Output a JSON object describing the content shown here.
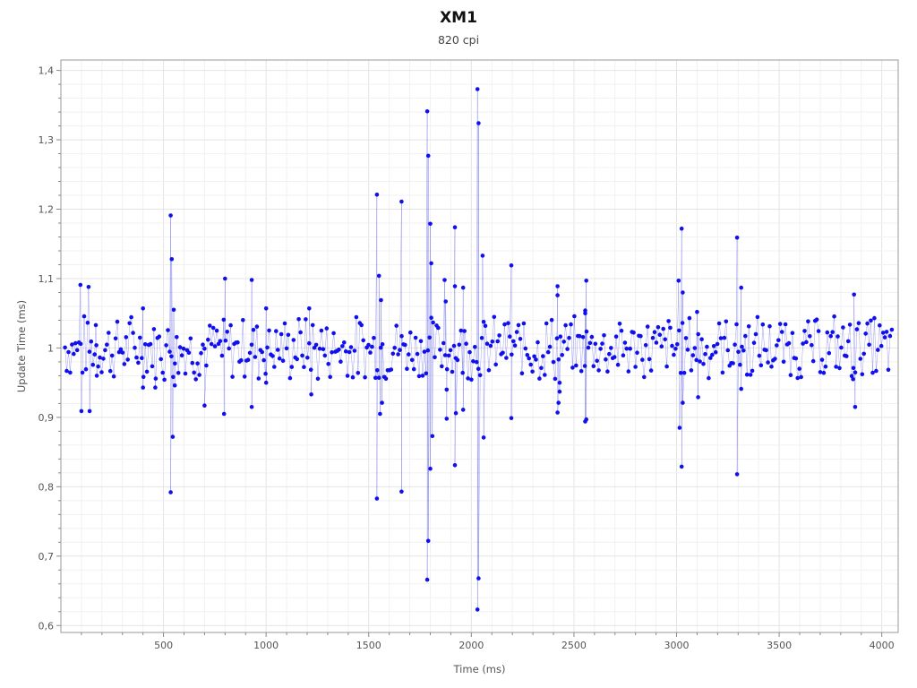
{
  "chart_data": {
    "type": "scatter",
    "title": "XM1",
    "subtitle": "820 cpi",
    "xlabel": "Time (ms)",
    "ylabel": "Update Time (ms)",
    "xlim": [
      0,
      4080
    ],
    "ylim": [
      0.59,
      1.415
    ],
    "x_ticks": [
      500,
      1000,
      1500,
      2000,
      2500,
      3000,
      3500,
      4000
    ],
    "x_tick_labels": [
      "500",
      "1000",
      "1500",
      "2000",
      "2500",
      "3000",
      "3500",
      "4000"
    ],
    "y_ticks": [
      0.6,
      0.7,
      0.8,
      0.9,
      1.0,
      1.1,
      1.2,
      1.3,
      1.4
    ],
    "y_tick_labels": [
      "0,6",
      "0,7",
      "0,8",
      "0,9",
      "1",
      "1,1",
      "1,2",
      "1,3",
      "1,4"
    ],
    "grid": true,
    "legend": "none",
    "point_color": "#1010ee",
    "line_color": "#2a2ae0",
    "outliers": [
      {
        "x": 95,
        "y": 1.091
      },
      {
        "x": 135,
        "y": 1.088
      },
      {
        "x": 100,
        "y": 0.909
      },
      {
        "x": 140,
        "y": 0.909
      },
      {
        "x": 170,
        "y": 1.033
      },
      {
        "x": 175,
        "y": 0.96
      },
      {
        "x": 535,
        "y": 1.191
      },
      {
        "x": 540,
        "y": 1.128
      },
      {
        "x": 550,
        "y": 1.055
      },
      {
        "x": 545,
        "y": 0.872
      },
      {
        "x": 535,
        "y": 0.792
      },
      {
        "x": 555,
        "y": 0.946
      },
      {
        "x": 400,
        "y": 1.057
      },
      {
        "x": 400,
        "y": 0.943
      },
      {
        "x": 460,
        "y": 0.943
      },
      {
        "x": 700,
        "y": 0.917
      },
      {
        "x": 800,
        "y": 1.1
      },
      {
        "x": 795,
        "y": 0.905
      },
      {
        "x": 930,
        "y": 1.098
      },
      {
        "x": 930,
        "y": 0.915
      },
      {
        "x": 1000,
        "y": 1.057
      },
      {
        "x": 1000,
        "y": 0.95
      },
      {
        "x": 1210,
        "y": 1.057
      },
      {
        "x": 1220,
        "y": 0.933
      },
      {
        "x": 1540,
        "y": 1.221
      },
      {
        "x": 1550,
        "y": 1.104
      },
      {
        "x": 1560,
        "y": 1.069
      },
      {
        "x": 1565,
        "y": 0.921
      },
      {
        "x": 1555,
        "y": 0.905
      },
      {
        "x": 1540,
        "y": 0.783
      },
      {
        "x": 1660,
        "y": 1.211
      },
      {
        "x": 1660,
        "y": 0.793
      },
      {
        "x": 1785,
        "y": 1.341
      },
      {
        "x": 1790,
        "y": 1.277
      },
      {
        "x": 1800,
        "y": 1.179
      },
      {
        "x": 1805,
        "y": 1.122
      },
      {
        "x": 1810,
        "y": 0.873
      },
      {
        "x": 1800,
        "y": 0.826
      },
      {
        "x": 1790,
        "y": 0.722
      },
      {
        "x": 1785,
        "y": 0.666
      },
      {
        "x": 1870,
        "y": 1.098
      },
      {
        "x": 1875,
        "y": 1.067
      },
      {
        "x": 1880,
        "y": 0.94
      },
      {
        "x": 1880,
        "y": 0.898
      },
      {
        "x": 1920,
        "y": 1.174
      },
      {
        "x": 1920,
        "y": 1.089
      },
      {
        "x": 1925,
        "y": 0.906
      },
      {
        "x": 1920,
        "y": 0.831
      },
      {
        "x": 1960,
        "y": 1.087
      },
      {
        "x": 1960,
        "y": 0.911
      },
      {
        "x": 2030,
        "y": 1.373
      },
      {
        "x": 2035,
        "y": 1.324
      },
      {
        "x": 2055,
        "y": 1.133
      },
      {
        "x": 2060,
        "y": 0.871
      },
      {
        "x": 2035,
        "y": 0.668
      },
      {
        "x": 2030,
        "y": 0.623
      },
      {
        "x": 2195,
        "y": 1.119
      },
      {
        "x": 2195,
        "y": 0.899
      },
      {
        "x": 2420,
        "y": 1.089
      },
      {
        "x": 2420,
        "y": 1.076
      },
      {
        "x": 2430,
        "y": 0.95
      },
      {
        "x": 2430,
        "y": 0.937
      },
      {
        "x": 2425,
        "y": 0.921
      },
      {
        "x": 2420,
        "y": 0.907
      },
      {
        "x": 2560,
        "y": 1.097
      },
      {
        "x": 2555,
        "y": 1.054
      },
      {
        "x": 2555,
        "y": 1.05
      },
      {
        "x": 2560,
        "y": 0.897
      },
      {
        "x": 2555,
        "y": 0.894
      },
      {
        "x": 3010,
        "y": 1.097
      },
      {
        "x": 3025,
        "y": 1.172
      },
      {
        "x": 3030,
        "y": 1.08
      },
      {
        "x": 3030,
        "y": 0.921
      },
      {
        "x": 3015,
        "y": 0.885
      },
      {
        "x": 3025,
        "y": 0.829
      },
      {
        "x": 3100,
        "y": 1.052
      },
      {
        "x": 3105,
        "y": 0.929
      },
      {
        "x": 3295,
        "y": 1.159
      },
      {
        "x": 3315,
        "y": 1.087
      },
      {
        "x": 3315,
        "y": 0.941
      },
      {
        "x": 3295,
        "y": 0.818
      },
      {
        "x": 3865,
        "y": 1.077
      },
      {
        "x": 3860,
        "y": 0.955
      },
      {
        "x": 3870,
        "y": 0.915
      }
    ],
    "main_band": {
      "x_start": 20,
      "x_end": 4050,
      "step": 8.5,
      "center": 1.0,
      "spread": [
        -0.04,
        -0.03,
        -0.02,
        -0.012,
        -0.006,
        0.0,
        0.006,
        0.012,
        0.02,
        0.03,
        0.04
      ]
    }
  }
}
